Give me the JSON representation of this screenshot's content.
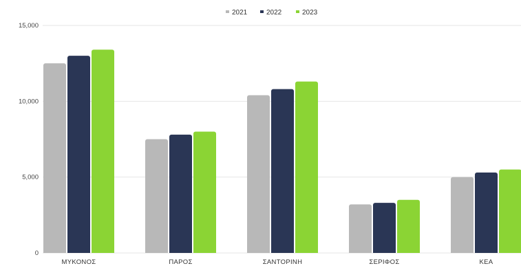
{
  "chart_data": {
    "type": "bar",
    "categories": [
      "ΜΥΚΟΝΟΣ",
      "ΠΑΡΟΣ",
      "ΣΑΝΤΟΡΙΝΗ",
      "ΣΕΡΙΦΟΣ",
      "ΚΕΑ"
    ],
    "series": [
      {
        "name": "2021",
        "color": "#b8b8b8",
        "values": [
          12500,
          7500,
          10400,
          3200,
          5000
        ]
      },
      {
        "name": "2022",
        "color": "#2a3655",
        "values": [
          13000,
          7800,
          10800,
          3300,
          5300
        ]
      },
      {
        "name": "2023",
        "color": "#8bd434",
        "values": [
          13400,
          8000,
          11300,
          3500,
          5500
        ]
      }
    ],
    "ylim": [
      0,
      15000
    ],
    "yticks": [
      0,
      5000,
      10000,
      15000
    ],
    "ytick_labels": [
      "0",
      "5,000",
      "10,000",
      "15,000"
    ],
    "grid": true,
    "legend_position": "top-center"
  }
}
